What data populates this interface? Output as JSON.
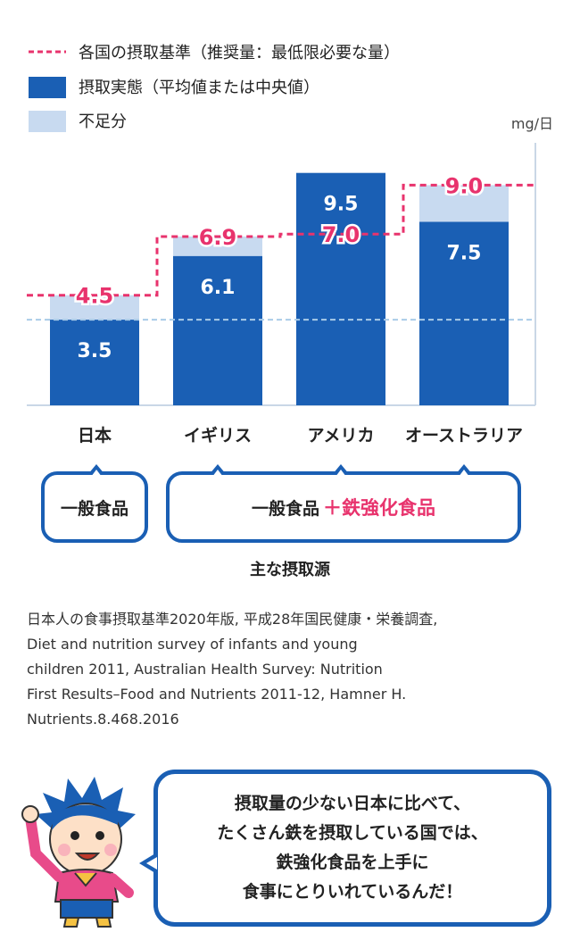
{
  "legend": {
    "recommended": "各国の摂取基準（推奨量：最低限必要な量）",
    "actual": "摂取実態（平均値または中央値）",
    "shortfall": "不足分"
  },
  "chart_data": {
    "type": "bar",
    "unit": "mg/日",
    "categories": [
      "日本",
      "イギリス",
      "アメリカ",
      "オーストラリア"
    ],
    "series": [
      {
        "name": "摂取実態（平均値または中央値）",
        "values": [
          3.5,
          6.1,
          9.5,
          7.5
        ]
      },
      {
        "name": "各国の摂取基準（推奨量：最低限必要な量）",
        "values": [
          4.5,
          6.9,
          7.0,
          9.0
        ]
      }
    ],
    "shortfall": [
      1.0,
      0.8,
      0.0,
      1.5
    ],
    "ylim": [
      0,
      12.2
    ],
    "grid": false,
    "reference_line": 3.5,
    "legend_position": "top-left",
    "colors": {
      "actual": "#1a5fb4",
      "shortfall": "#c8daf0",
      "recommended": "#e8336d",
      "reference": "#a9cbe8"
    }
  },
  "sources": {
    "japan": "一般食品",
    "others_base": "一般食品",
    "others_plus": "＋鉄強化食品",
    "title": "主な摂取源"
  },
  "citation": "日本人の食事摂取基準2020年版, 平成28年国民健康・栄養調査,\nDiet and nutrition survey of infants and young\nchildren 2011, Australian Health Survey: Nutrition\nFirst Results–Food and Nutrients 2011-12, Hamner H.\nNutrients.8.468.2016",
  "bubble": {
    "text": "摂取量の少ない日本に比べて、\nたくさん鉄を摂取している国では、\n鉄強化食品を上手に\n食事にとりいれているんだ！"
  },
  "character": {
    "icon": "boy-mascot-icon"
  }
}
